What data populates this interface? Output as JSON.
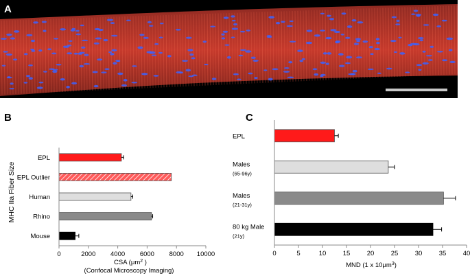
{
  "panels": {
    "a": "A",
    "b": "B",
    "c": "C"
  },
  "colors": {
    "tissue": "#c73a2c",
    "nuclei": "#3b63ff",
    "background": "#000000",
    "scale_bar": "#c8c8c8"
  },
  "chart_data": [
    {
      "type": "bar",
      "orientation": "horizontal",
      "categories": [
        "EPL",
        "EPL Outlier",
        "Human",
        "Rhino",
        "Mouse"
      ],
      "values": [
        4250,
        7650,
        4900,
        6300,
        1100
      ],
      "errors": [
        150,
        0,
        120,
        80,
        250
      ],
      "fills": [
        "#ff1a1a",
        "hatch-red",
        "#dedede",
        "#8a8a8a",
        "#000000"
      ],
      "ylabel": "MHC IIa Fiber Size",
      "xlabel_main": "CSA (μm",
      "xlabel_sup": "2",
      "xlabel_end": " )",
      "xlabel_sub": "(Confocal Microscopy Imaging)",
      "xlim": [
        0,
        10000
      ],
      "xticks": [
        "0",
        "2000",
        "4000",
        "6000",
        "8000",
        "10000"
      ]
    },
    {
      "type": "bar",
      "orientation": "horizontal",
      "categories": [
        {
          "line1": "EPL",
          "line2": ""
        },
        {
          "line1": "Males",
          "line2": "(65-96y)"
        },
        {
          "line1": "Males",
          "line2": "(21-31y)"
        },
        {
          "line1": "80 kg Male",
          "line2": "(21y)"
        }
      ],
      "values": [
        12.5,
        23.7,
        35.2,
        33.0
      ],
      "errors": [
        0.8,
        1.3,
        2.5,
        1.8
      ],
      "fills": [
        "#ff1a1a",
        "#dedede",
        "#8a8a8a",
        "#000000"
      ],
      "xlabel_main": "MND (1 x 10μm",
      "xlabel_sup": "3",
      "xlabel_end": ")",
      "xlim": [
        0,
        40
      ],
      "xticks": [
        "0",
        "5",
        "10",
        "15",
        "20",
        "25",
        "30",
        "35",
        "40"
      ]
    }
  ]
}
